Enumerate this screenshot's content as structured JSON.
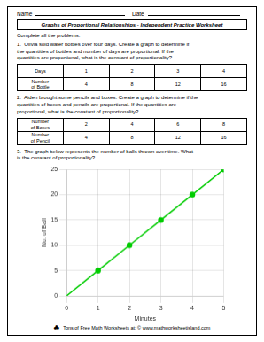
{
  "chart_data": {
    "type": "line",
    "title": "Graphs of Proportional Relationships - Independent Practice Worksheet",
    "annotations": [
      "Name",
      "Date",
      "Complete all the problems.",
      "1.  Olivia sold water bottles over four days. Create a graph to determine if\nthe quantities of bottles and number of days are proportional. If the\nquantities are proportional, what is the constant of proportionality?",
      [
        [
          "Days",
          "1",
          "2",
          "3",
          "4"
        ],
        [
          "Number\nof Bottle",
          "4",
          "8",
          "12",
          "16"
        ]
      ],
      "2.  Aiden brought some pencils and boxes. Create a graph to determine if the\nquantities of boxes and pencils are proportional. If the quantities are\nproportional, what is the constant of proportionality?",
      [
        [
          "Number\nof Boxes",
          "2",
          "4",
          "6",
          "8"
        ],
        [
          "Number\nof Pencil",
          "4",
          "8",
          "12",
          "16"
        ]
      ],
      "3.  The graph below represents the number of balls thrown over time. What\nis the constant of proportionality?",
      "♣",
      "Tons of Free Math Worksheets at: © www.mathworksheetisland.com"
    ],
    "x": [
      0,
      1,
      2,
      3,
      4,
      5
    ],
    "values": [
      0,
      5,
      10,
      15,
      20,
      25
    ],
    "color": "#00cc00",
    "marker": "circle",
    "xlabel": "Minutes",
    "ylabel": "No. of Ball",
    "xlim": [
      0,
      5
    ],
    "ylim": [
      0,
      25
    ],
    "xticks": [
      0,
      1,
      2,
      3,
      4,
      5
    ],
    "yticks": [
      0,
      5,
      10,
      15,
      20,
      25
    ],
    "grid": true
  }
}
